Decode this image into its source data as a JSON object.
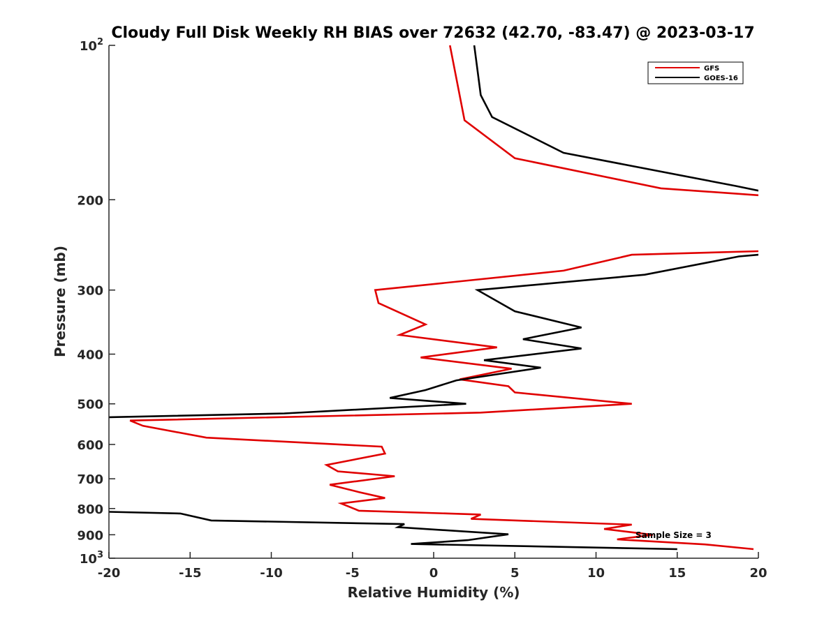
{
  "chart_data": {
    "type": "line",
    "title": "Cloudy Full Disk Weekly RH BIAS over 72632 (42.70, -83.47) @ 2023-03-17",
    "xlabel": "Relative Humidity (%)",
    "ylabel": "Pressure (mb)",
    "xlim": [
      -20,
      20
    ],
    "ylim": [
      100,
      1000
    ],
    "yscale": "log",
    "y_reversed": true,
    "grid": false,
    "legend_position": "top-right",
    "x_ticks": [
      "-20",
      "-15",
      "-10",
      "-5",
      "0",
      "5",
      "10",
      "15",
      "20"
    ],
    "y_ticks": [
      {
        "value": 100,
        "base": "10",
        "exp": "2"
      },
      {
        "value": 200,
        "label": "200"
      },
      {
        "value": 300,
        "label": "300"
      },
      {
        "value": 400,
        "label": "400"
      },
      {
        "value": 500,
        "label": "500"
      },
      {
        "value": 600,
        "label": "600"
      },
      {
        "value": 700,
        "label": "700"
      },
      {
        "value": 800,
        "label": "800"
      },
      {
        "value": 900,
        "label": "900"
      },
      {
        "value": 1000,
        "base": "10",
        "exp": "3"
      }
    ],
    "annotation": "Sample Size = 3",
    "series": [
      {
        "name": "GFS",
        "color": "#e00000",
        "points": [
          [
            1.0,
            100
          ],
          [
            1.9,
            140
          ],
          [
            5.0,
            166
          ],
          [
            14.0,
            190
          ],
          [
            20.0,
            196
          ],
          [
            null,
            null
          ],
          [
            20.0,
            252
          ],
          [
            12.2,
            256
          ],
          [
            8.0,
            275
          ],
          [
            -3.6,
            300
          ],
          [
            -3.4,
            318
          ],
          [
            -0.5,
            350
          ],
          [
            -2.1,
            367
          ],
          [
            3.9,
            388
          ],
          [
            -0.8,
            406
          ],
          [
            4.8,
            427
          ],
          [
            1.6,
            448
          ],
          [
            4.6,
            462
          ],
          [
            5.0,
            475
          ],
          [
            12.2,
            500
          ],
          [
            2.9,
            520
          ],
          [
            -18.7,
            539
          ],
          [
            -17.9,
            552
          ],
          [
            -14.0,
            582
          ],
          [
            -3.2,
            606
          ],
          [
            -3.0,
            625
          ],
          [
            -6.6,
            658
          ],
          [
            -5.9,
            677
          ],
          [
            -2.4,
            692
          ],
          [
            -6.4,
            719
          ],
          [
            -4.6,
            743
          ],
          [
            -3.0,
            763
          ],
          [
            -5.7,
            782
          ],
          [
            -4.6,
            808
          ],
          [
            2.9,
            822
          ],
          [
            2.3,
            838
          ],
          [
            12.2,
            860
          ],
          [
            10.5,
            877
          ],
          [
            13.5,
            900
          ],
          [
            11.3,
            919
          ],
          [
            16.7,
            940
          ],
          [
            19.7,
            960
          ]
        ]
      },
      {
        "name": "GOES-16",
        "color": "#000000",
        "points": [
          [
            2.5,
            100
          ],
          [
            2.9,
            125
          ],
          [
            3.6,
            138
          ],
          [
            8.0,
            162
          ],
          [
            18.6,
            188
          ],
          [
            20.0,
            192
          ],
          [
            null,
            null
          ],
          [
            20.0,
            256
          ],
          [
            18.8,
            258
          ],
          [
            13.0,
            280
          ],
          [
            2.7,
            300
          ],
          [
            5.0,
            330
          ],
          [
            9.1,
            355
          ],
          [
            5.5,
            374
          ],
          [
            9.1,
            390
          ],
          [
            3.1,
            411
          ],
          [
            6.6,
            425
          ],
          [
            1.4,
            450
          ],
          [
            -0.5,
            470
          ],
          [
            -2.7,
            487
          ],
          [
            2.0,
            500
          ],
          [
            -9.2,
            522
          ],
          [
            -20.0,
            531
          ],
          [
            null,
            null
          ],
          [
            -20.0,
            812
          ],
          [
            -15.6,
            818
          ],
          [
            -13.7,
            844
          ],
          [
            -1.8,
            858
          ],
          [
            -2.2,
            870
          ],
          [
            4.6,
            898
          ],
          [
            2.1,
            922
          ],
          [
            -1.4,
            938
          ],
          [
            15.0,
            960
          ]
        ]
      }
    ]
  }
}
